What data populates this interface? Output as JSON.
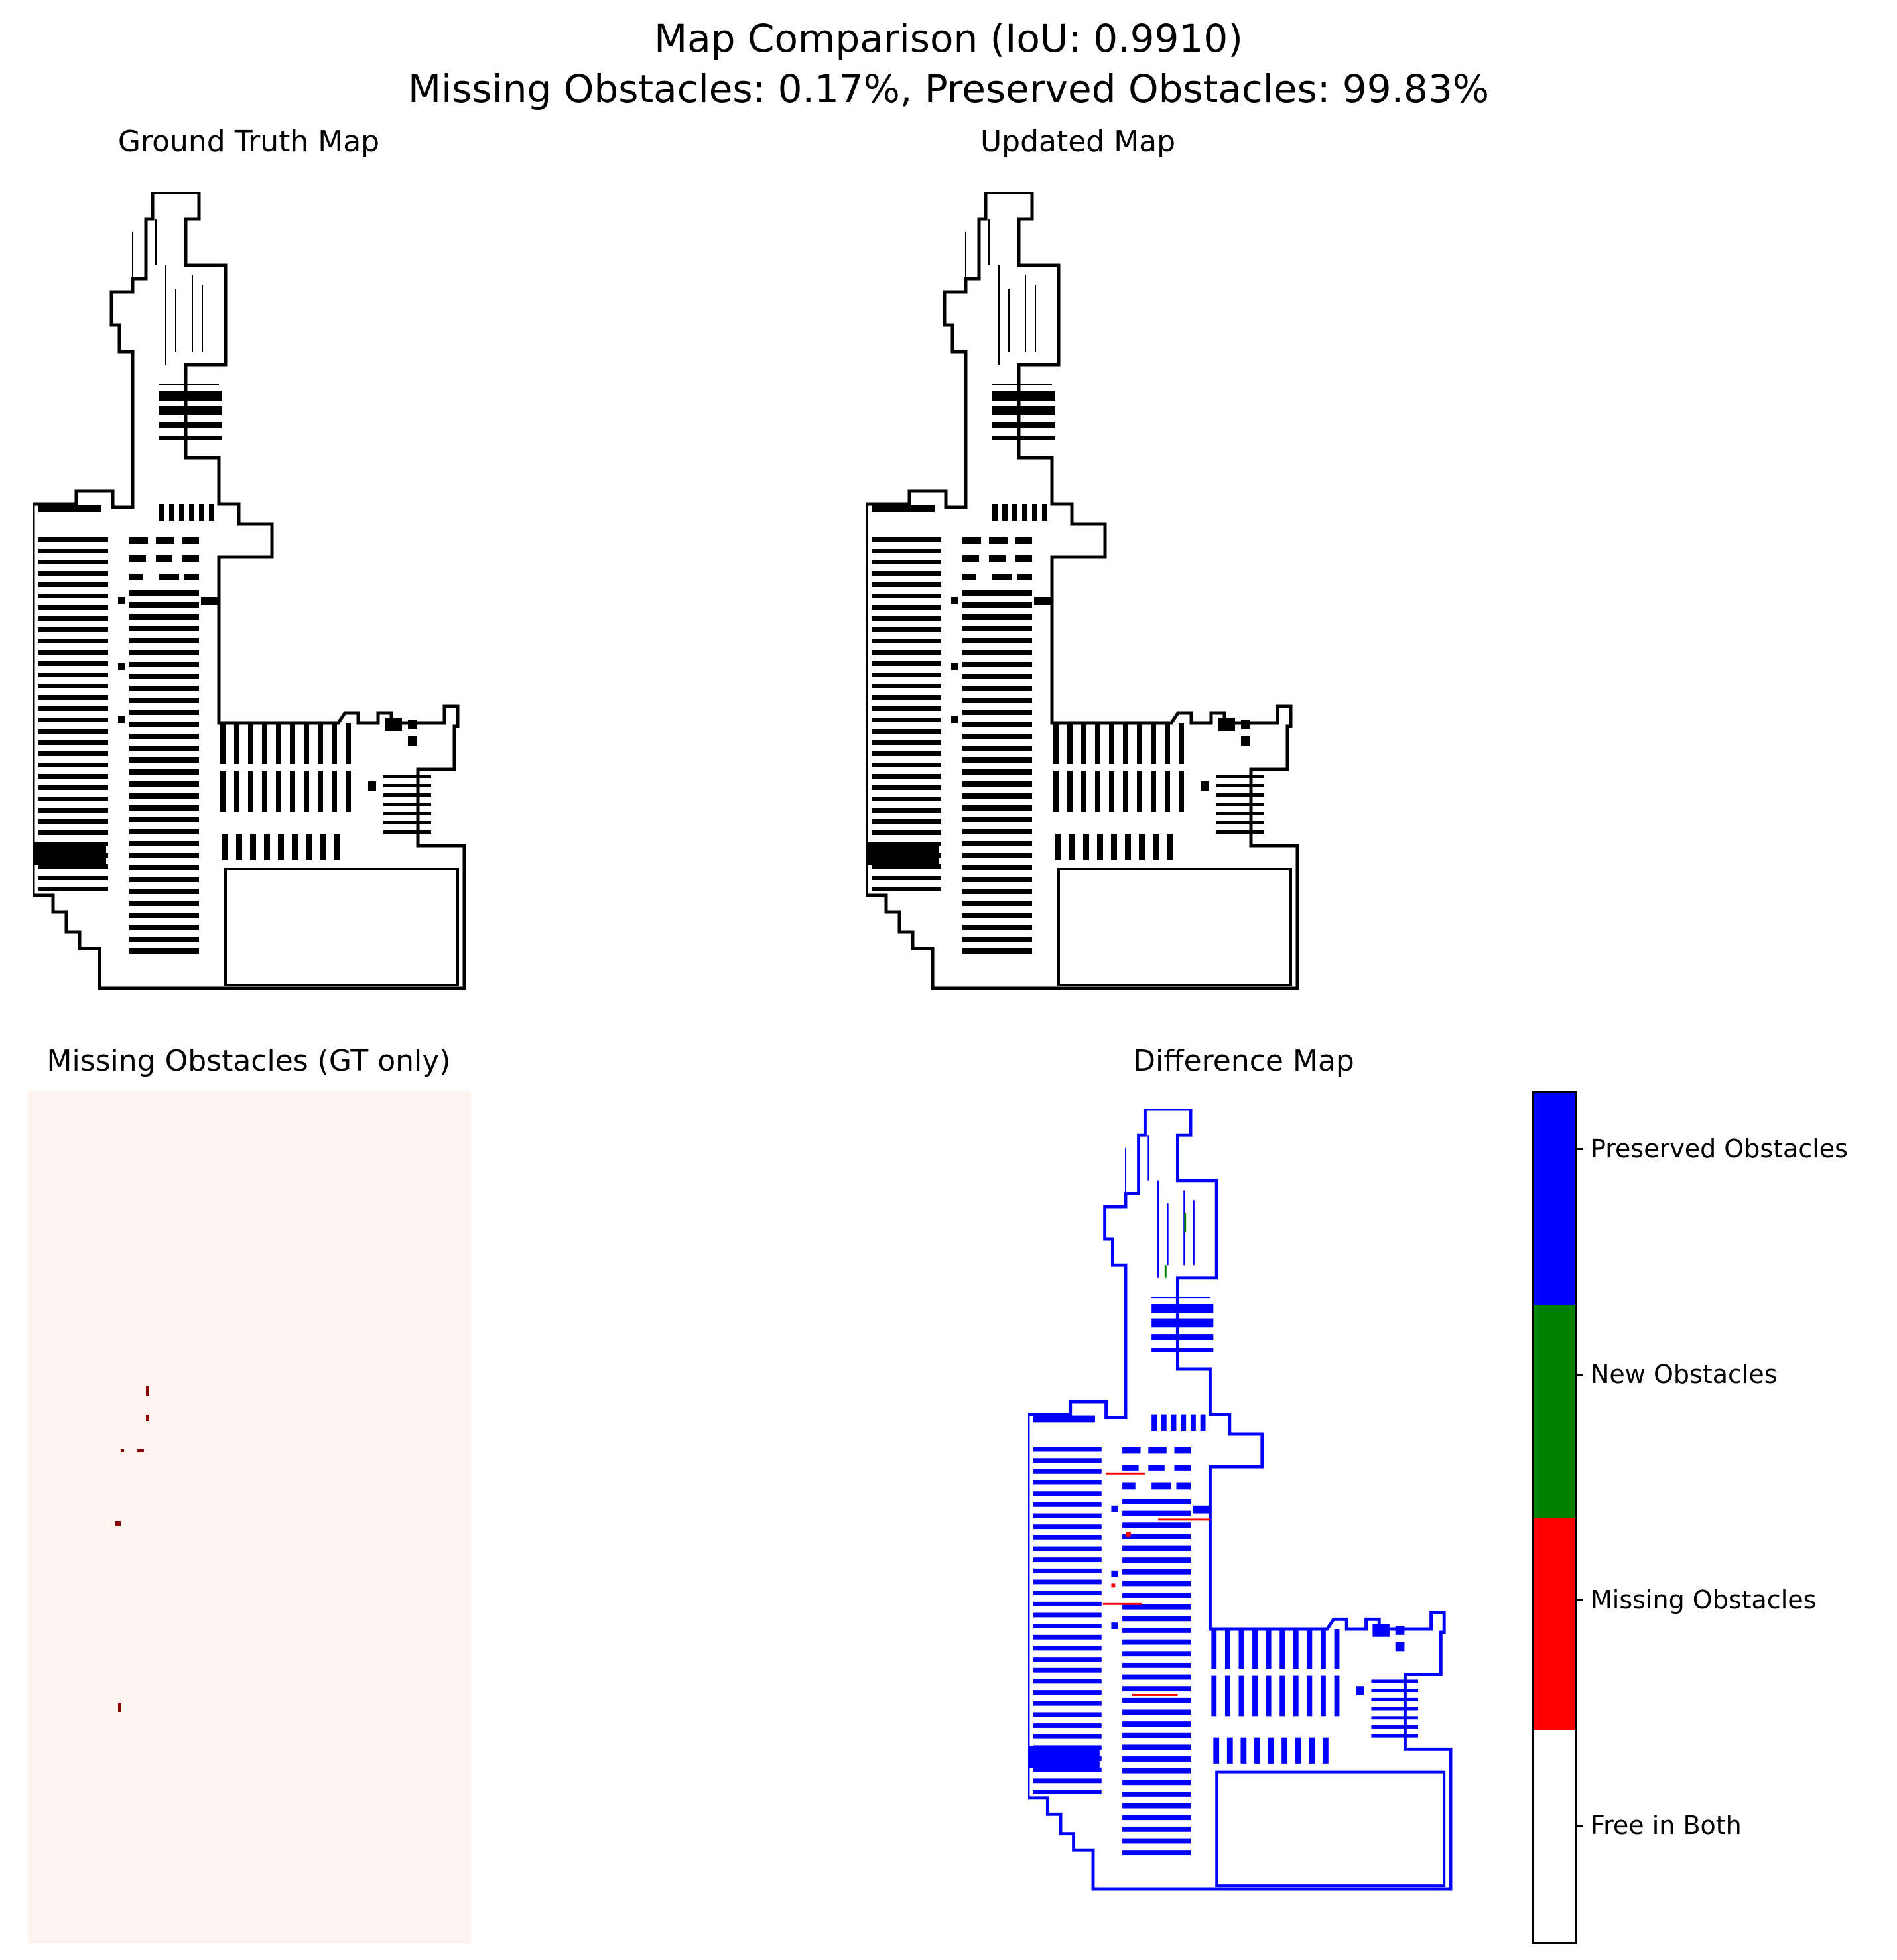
{
  "figure": {
    "title_line1": "Map Comparison (IoU: 0.9910)",
    "title_line2": "Missing Obstacles: 0.17%, Preserved Obstacles: 99.83%"
  },
  "panels": {
    "ground_truth": {
      "title": "Ground Truth Map"
    },
    "updated": {
      "title": "Updated Map"
    },
    "missing": {
      "title": "Missing Obstacles (GT only)",
      "background_color": "#fff3ef",
      "marker_color": "#8b0000"
    },
    "difference": {
      "title": "Difference Map"
    }
  },
  "colorbar": {
    "entries": [
      {
        "label": "Preserved Obstacles",
        "color": "#0000ff"
      },
      {
        "label": "New Obstacles",
        "color": "#008000"
      },
      {
        "label": "Missing Obstacles",
        "color": "#ff0000"
      },
      {
        "label": "Free in Both",
        "color": "#ffffff"
      }
    ]
  },
  "colors": {
    "obstacle": "#000000",
    "preserved": "#0000ff",
    "missing": "#ff0000",
    "new": "#008000"
  }
}
